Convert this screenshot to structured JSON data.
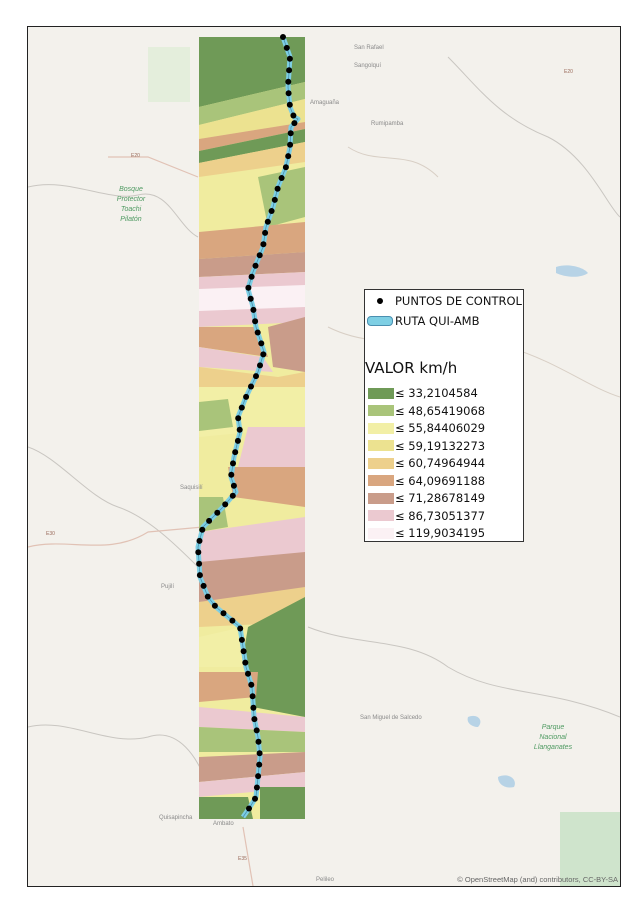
{
  "map": {
    "legend": {
      "points_label": "PUNTOS DE CONTROL",
      "route_label": "RUTA QUI-AMB",
      "title": "VALOR km/h",
      "classes": [
        {
          "label": "≤ 33,2104584",
          "color": "#6f9a57"
        },
        {
          "label": "≤ 48,65419068",
          "color": "#a9c47a"
        },
        {
          "label": "≤ 55,84406029",
          "color": "#f2efa6"
        },
        {
          "label": "≤ 59,19132273",
          "color": "#ece290"
        },
        {
          "label": "≤ 60,74964944",
          "color": "#edd08c"
        },
        {
          "label": "≤ 64,09691188",
          "color": "#d9a67f"
        },
        {
          "label": "≤ 71,28678149",
          "color": "#c99c8a"
        },
        {
          "label": "≤ 86,73051377",
          "color": "#ebc9d0"
        },
        {
          "label": "≤ 119,9034195",
          "color": "#fbf1f4"
        }
      ]
    },
    "attribution": "© OpenStreetMap (and) contributors, CC-BY-SA",
    "places": {
      "sangolqui": "Sangolquí",
      "san_rafael": "San Rafael",
      "amaguana": "Amaguaña",
      "rumipamba": "Rumipamba",
      "saquisili": "Saquisilí",
      "pujili": "Pujilí",
      "quisapincha": "Quisapincha",
      "ambato": "Ambato",
      "salcedo": "San Miguel de Salcedo",
      "pelileo": "Pelileo"
    },
    "parks": {
      "toachi": [
        "Bosque",
        "Protector",
        "Toachi",
        "Pilatón"
      ],
      "llanganates": [
        "Parque",
        "Nacional",
        "Llanganates"
      ]
    },
    "road_shields": [
      "E20",
      "E20",
      "E30",
      "E35"
    ]
  }
}
